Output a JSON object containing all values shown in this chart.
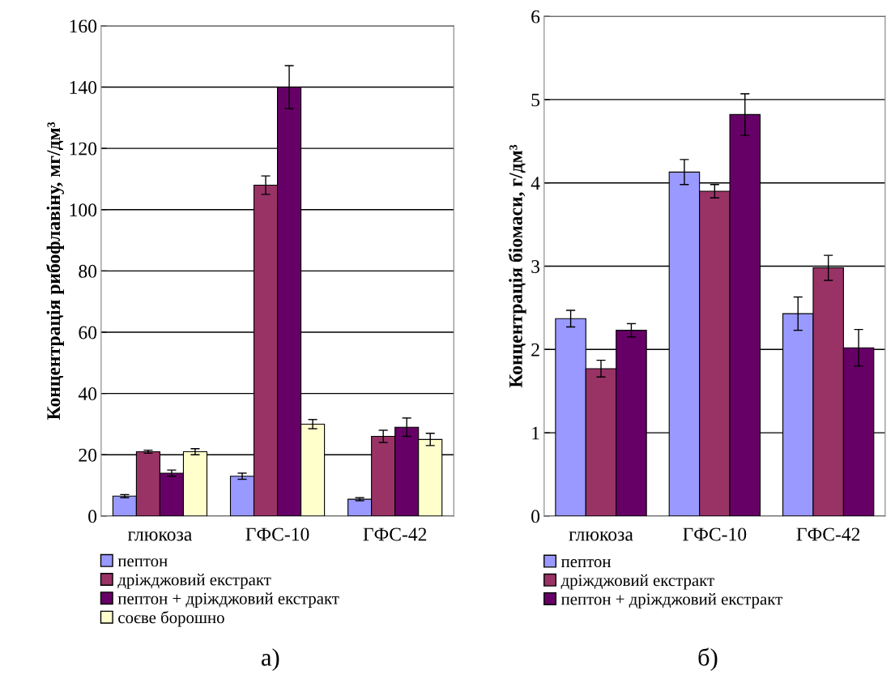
{
  "chart_data": [
    {
      "type": "bar",
      "categories": [
        "глюкоза",
        "ГФС-10",
        "ГФС-42"
      ],
      "ylabel": "Концентрація рибофлавіну, мг/дм³",
      "ylim": [
        0,
        160
      ],
      "yticks": [
        0,
        20,
        40,
        60,
        80,
        100,
        120,
        140,
        160
      ],
      "grid": "y",
      "legend": "bottom",
      "annotations": [
        "а)"
      ],
      "series": [
        {
          "name": "пептон",
          "color": "#9999ff",
          "values": [
            6.5,
            13,
            5.5
          ],
          "errors": [
            0.5,
            1,
            0.5
          ]
        },
        {
          "name": "дріжджовий екстракт",
          "color": "#993366",
          "values": [
            21,
            108,
            26
          ],
          "errors": [
            0.5,
            3,
            2
          ]
        },
        {
          "name": "пептон + дріжджовий екстракт",
          "color": "#660066",
          "values": [
            14,
            140,
            29
          ],
          "errors": [
            1,
            7,
            3
          ]
        },
        {
          "name": "соєве борошно",
          "color": "#ffffcc",
          "values": [
            21,
            30,
            25
          ],
          "errors": [
            1,
            1.5,
            2
          ]
        }
      ]
    },
    {
      "type": "bar",
      "categories": [
        "глюкоза",
        "ГФС-10",
        "ГФС-42"
      ],
      "ylabel": "Концентрація біомаси, г/дм³",
      "ylim": [
        0,
        6
      ],
      "yticks": [
        0,
        1,
        2,
        3,
        4,
        5,
        6
      ],
      "grid": "y",
      "legend": "bottom",
      "annotations": [
        "б)"
      ],
      "series": [
        {
          "name": "пептон",
          "color": "#9999ff",
          "values": [
            2.37,
            4.13,
            2.43
          ],
          "errors": [
            0.1,
            0.15,
            0.2
          ]
        },
        {
          "name": "дріжджовий екстракт",
          "color": "#993366",
          "values": [
            1.77,
            3.9,
            2.98
          ],
          "errors": [
            0.1,
            0.08,
            0.15
          ]
        },
        {
          "name": "пептон + дріжджовий екстракт",
          "color": "#660066",
          "values": [
            2.23,
            4.82,
            2.02
          ],
          "errors": [
            0.08,
            0.25,
            0.22
          ]
        }
      ]
    }
  ]
}
